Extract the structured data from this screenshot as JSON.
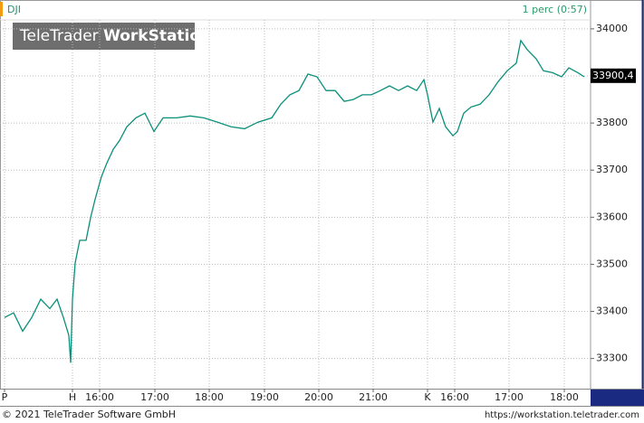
{
  "chart_data": {
    "type": "line",
    "title": "DJI",
    "interval": "1 perc (0:57)",
    "watermark": {
      "brand": "TeleTrader",
      "product": "WorkStation"
    },
    "series": [
      {
        "name": "DJI",
        "color": "#0a8f7a",
        "x": [
          5,
          15,
          25,
          35,
          45,
          55,
          63,
          70,
          76,
          78,
          80,
          83,
          88,
          95,
          100,
          105,
          112,
          118,
          125,
          132,
          140,
          150,
          160,
          170,
          180,
          195,
          210,
          225,
          240,
          255,
          270,
          285,
          300,
          310,
          320,
          330,
          340,
          350,
          360,
          370,
          380,
          390,
          400,
          410,
          420,
          430,
          440,
          450,
          460,
          468,
          472,
          478,
          485,
          492,
          500,
          505,
          512,
          520,
          530,
          540,
          550,
          560,
          570,
          575,
          582,
          592,
          600,
          610,
          620,
          628,
          638,
          645
        ],
        "values": [
          33387,
          33397,
          33358,
          33387,
          33426,
          33406,
          33426,
          33387,
          33349,
          33291,
          33426,
          33503,
          33551,
          33551,
          33599,
          33638,
          33686,
          33715,
          33744,
          33763,
          33792,
          33811,
          33821,
          33782,
          33811,
          33811,
          33815,
          33811,
          33802,
          33792,
          33788,
          33802,
          33811,
          33840,
          33860,
          33869,
          33904,
          33898,
          33869,
          33869,
          33846,
          33850,
          33860,
          33860,
          33869,
          33879,
          33869,
          33879,
          33869,
          33892,
          33860,
          33802,
          33831,
          33792,
          33773,
          33782,
          33821,
          33834,
          33840,
          33860,
          33888,
          33911,
          33927,
          33975,
          33956,
          33936,
          33911,
          33907,
          33898,
          33917,
          33907,
          33898
        ]
      }
    ],
    "last_value": {
      "value": 33900.4,
      "label": "33900,4"
    },
    "xlim": [
      0,
      652
    ],
    "xticks": [
      {
        "value": 5,
        "label": "P"
      },
      {
        "value": 80,
        "label": "H"
      },
      {
        "value": 110,
        "label": "16:00"
      },
      {
        "value": 171,
        "label": "17:00"
      },
      {
        "value": 231,
        "label": "18:00"
      },
      {
        "value": 292,
        "label": "19:00"
      },
      {
        "value": 352,
        "label": "20:00"
      },
      {
        "value": 412,
        "label": "21:00"
      },
      {
        "value": 472,
        "label": "K"
      },
      {
        "value": 502,
        "label": "16:00"
      },
      {
        "value": 562,
        "label": "17:00"
      },
      {
        "value": 623,
        "label": "18:00"
      }
    ],
    "ylim": [
      33236,
      34019
    ],
    "yticks": [
      33300,
      33400,
      33500,
      33600,
      33700,
      33800,
      33900,
      34000
    ],
    "grid": true
  },
  "footer": {
    "copyright": "© 2021 TeleTrader Software GmbH",
    "url": "https://workstation.teletrader.com"
  }
}
